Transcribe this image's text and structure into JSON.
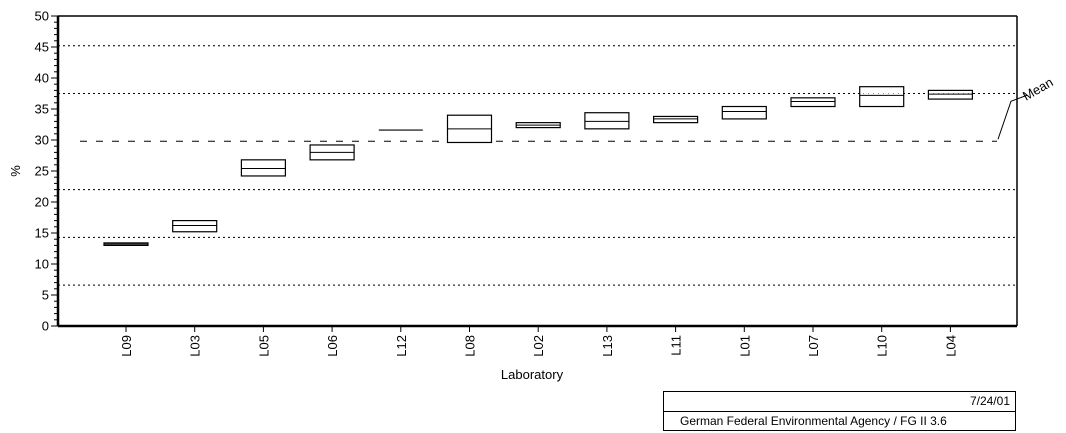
{
  "chart_data": {
    "type": "box",
    "ylabel": "%",
    "xlabel": "Laboratory",
    "ylim": [
      0,
      50
    ],
    "yticks_major": [
      0,
      5,
      10,
      15,
      20,
      25,
      30,
      35,
      40,
      45,
      50
    ],
    "grid": "dotted horizontal at tolerance limits",
    "categories": [
      "L09",
      "L03",
      "L05",
      "L06",
      "L12",
      "L08",
      "L02",
      "L13",
      "L11",
      "L01",
      "L07",
      "L10",
      "L04"
    ],
    "boxes": [
      {
        "lab": "L09",
        "low": 13.0,
        "mid": 13.2,
        "high": 13.4
      },
      {
        "lab": "L03",
        "low": 15.2,
        "mid": 16.2,
        "high": 17.0
      },
      {
        "lab": "L05",
        "low": 24.2,
        "mid": 25.4,
        "high": 26.8
      },
      {
        "lab": "L06",
        "low": 26.8,
        "mid": 28.0,
        "high": 29.2
      },
      {
        "lab": "L12",
        "low": 31.6,
        "mid": 31.6,
        "high": 31.6
      },
      {
        "lab": "L08",
        "low": 29.6,
        "mid": 31.8,
        "high": 34.0
      },
      {
        "lab": "L02",
        "low": 32.0,
        "mid": 32.4,
        "high": 32.8
      },
      {
        "lab": "L13",
        "low": 31.8,
        "mid": 33.0,
        "high": 34.4
      },
      {
        "lab": "L11",
        "low": 32.8,
        "mid": 33.4,
        "high": 33.8
      },
      {
        "lab": "L01",
        "low": 33.4,
        "mid": 34.6,
        "high": 35.4
      },
      {
        "lab": "L07",
        "low": 35.4,
        "mid": 36.2,
        "high": 36.8
      },
      {
        "lab": "L10",
        "low": 35.4,
        "mid": 37.2,
        "high": 38.6
      },
      {
        "lab": "L04",
        "low": 36.6,
        "mid": 37.4,
        "high": 38.0
      }
    ],
    "mean": 29.8,
    "mean_label": "Mean",
    "tolerance_lines": [
      6.6,
      14.3,
      22.0,
      37.5,
      45.2
    ]
  },
  "footer": {
    "date": "7/24/01",
    "agency": "German Federal Environmental Agency / FG II 3.6"
  }
}
